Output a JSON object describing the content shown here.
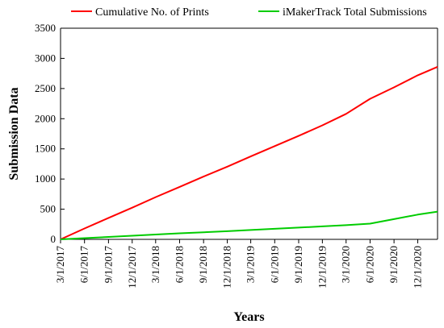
{
  "chart_data": {
    "type": "line",
    "title": "",
    "xlabel": "Years",
    "ylabel": "Submission Data",
    "ylim": [
      0,
      3500
    ],
    "yticks": [
      0,
      500,
      1000,
      1500,
      2000,
      2500,
      3000,
      3500
    ],
    "xlim": [
      "2017-03-01",
      "2021-02-15"
    ],
    "xticks": [
      "3/1/2017",
      "6/1/2017",
      "9/1/2017",
      "12/1/2017",
      "3/1/2018",
      "6/1/2018",
      "9/1/2018",
      "12/1/2018",
      "3/1/2019",
      "6/1/2019",
      "9/1/2019",
      "12/1/2019",
      "3/1/2020",
      "6/1/2020",
      "9/1/2020",
      "12/1/2020"
    ],
    "grid": false,
    "legend_position": "top",
    "series": [
      {
        "name": "Cumulative No. of Prints",
        "color": "#ff0000",
        "x": [
          "2017-03-01",
          "2017-06-01",
          "2017-09-01",
          "2017-12-01",
          "2018-03-01",
          "2018-06-01",
          "2018-09-01",
          "2018-12-01",
          "2019-03-01",
          "2019-06-01",
          "2019-09-01",
          "2019-12-01",
          "2020-03-01",
          "2020-06-01",
          "2020-09-01",
          "2020-12-01",
          "2021-02-15"
        ],
        "y": [
          0,
          180,
          355,
          525,
          700,
          870,
          1040,
          1205,
          1375,
          1545,
          1715,
          1890,
          2080,
          2330,
          2520,
          2720,
          2860
        ]
      },
      {
        "name": "iMakerTrack Total Submissions",
        "color": "#00cc00",
        "x": [
          "2017-03-01",
          "2017-06-01",
          "2017-09-01",
          "2017-12-01",
          "2018-03-01",
          "2018-06-01",
          "2018-09-01",
          "2018-12-01",
          "2019-03-01",
          "2019-06-01",
          "2019-09-01",
          "2019-12-01",
          "2020-03-01",
          "2020-06-01",
          "2020-09-01",
          "2020-12-01",
          "2021-02-15"
        ],
        "y": [
          0,
          20,
          40,
          60,
          80,
          100,
          118,
          135,
          155,
          175,
          195,
          215,
          235,
          260,
          335,
          410,
          460
        ]
      }
    ]
  }
}
